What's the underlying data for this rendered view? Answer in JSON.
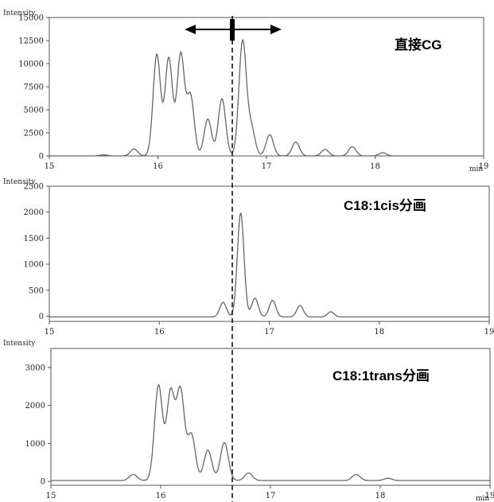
{
  "chart_data": [
    {
      "type": "line",
      "panel_label": "直接CG",
      "ylabel": "Intensity",
      "xlabel": "min",
      "xlim": [
        15,
        19
      ],
      "ylim": [
        0,
        15000
      ],
      "x_ticks": [
        15,
        16,
        17,
        18,
        19
      ],
      "y_ticks": [
        0,
        2500,
        5000,
        7500,
        10000,
        12500,
        15000
      ],
      "peaks": [
        {
          "t": 15.5,
          "h": 120
        },
        {
          "t": 15.78,
          "h": 750
        },
        {
          "t": 15.99,
          "h": 11000
        },
        {
          "t": 16.1,
          "h": 10600
        },
        {
          "t": 16.21,
          "h": 11000
        },
        {
          "t": 16.3,
          "h": 6500
        },
        {
          "t": 16.46,
          "h": 4000
        },
        {
          "t": 16.59,
          "h": 6200
        },
        {
          "t": 16.78,
          "h": 12400
        },
        {
          "t": 16.86,
          "h": 3000
        },
        {
          "t": 17.03,
          "h": 2300
        },
        {
          "t": 17.27,
          "h": 1500
        },
        {
          "t": 17.54,
          "h": 700
        },
        {
          "t": 17.79,
          "h": 1000
        },
        {
          "t": 18.07,
          "h": 350
        }
      ]
    },
    {
      "type": "line",
      "panel_label": "C18:1cis分画",
      "ylabel": "Intensity",
      "xlabel": "",
      "xlim": [
        15,
        19
      ],
      "ylim": [
        -100,
        2500
      ],
      "x_ticks": [
        15,
        16,
        17,
        18,
        19
      ],
      "y_ticks": [
        0,
        500,
        1000,
        1500,
        2000,
        2500
      ],
      "peaks": [
        {
          "t": 16.58,
          "h": 280
        },
        {
          "t": 16.74,
          "h": 2000
        },
        {
          "t": 16.87,
          "h": 360
        },
        {
          "t": 17.03,
          "h": 320
        },
        {
          "t": 17.28,
          "h": 220
        },
        {
          "t": 17.56,
          "h": 100
        }
      ]
    },
    {
      "type": "line",
      "panel_label": "C18:1trans分画",
      "ylabel": "Intensity",
      "xlabel": "min",
      "xlim": [
        15,
        19
      ],
      "ylim": [
        -100,
        3500
      ],
      "x_ticks": [
        15,
        16,
        17,
        18,
        19
      ],
      "y_ticks": [
        0,
        1000,
        2000,
        3000
      ],
      "peaks": [
        {
          "t": 15.75,
          "h": 160
        },
        {
          "t": 15.98,
          "h": 2500
        },
        {
          "t": 16.09,
          "h": 2300
        },
        {
          "t": 16.18,
          "h": 2350
        },
        {
          "t": 16.28,
          "h": 1200
        },
        {
          "t": 16.43,
          "h": 800
        },
        {
          "t": 16.58,
          "h": 1000
        },
        {
          "t": 16.8,
          "h": 200
        },
        {
          "t": 17.78,
          "h": 160
        },
        {
          "t": 18.07,
          "h": 60
        }
      ]
    }
  ]
}
